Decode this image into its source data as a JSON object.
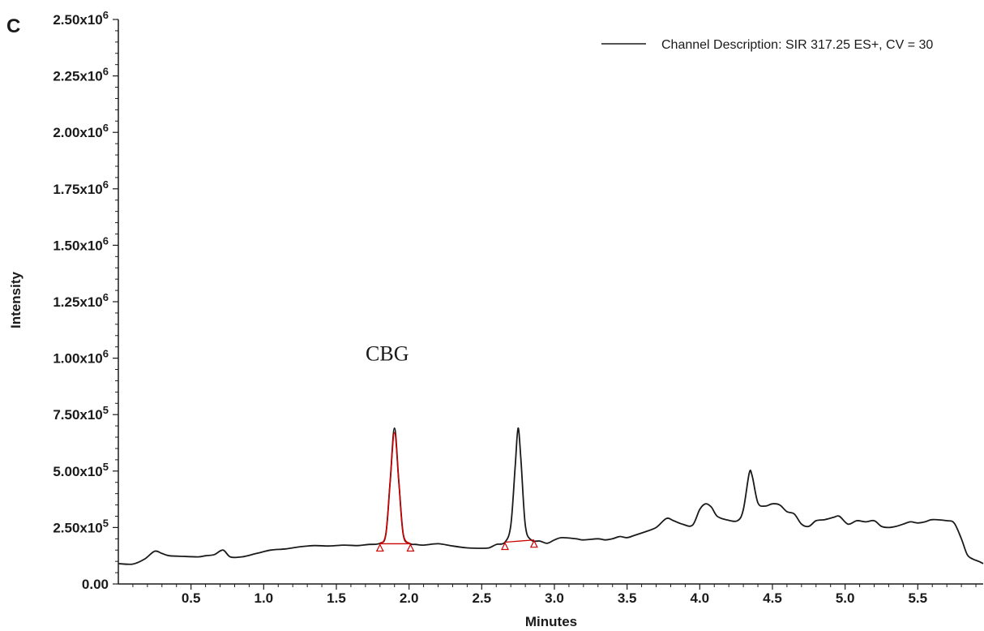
{
  "panel_letter": "C",
  "chart_data": {
    "type": "line",
    "xlabel": "Minutes",
    "ylabel": "Intensity",
    "xlim": [
      0.0,
      5.95
    ],
    "ylim": [
      0,
      2500000
    ],
    "x_ticks": [
      0.5,
      1.0,
      1.5,
      2.0,
      2.5,
      3.0,
      3.5,
      4.0,
      4.5,
      5.0,
      5.5
    ],
    "x_tick_labels": [
      "0.5",
      "1.0",
      "1.5",
      "2.0",
      "2.5",
      "3.0",
      "3.5",
      "4.0",
      "4.5",
      "5.0",
      "5.5"
    ],
    "y_ticks": [
      {
        "value": 0,
        "mantissa": "0.00",
        "exp": ""
      },
      {
        "value": 250000,
        "mantissa": "2.50x10",
        "exp": "5"
      },
      {
        "value": 500000,
        "mantissa": "5.00x10",
        "exp": "5"
      },
      {
        "value": 750000,
        "mantissa": "7.50x10",
        "exp": "5"
      },
      {
        "value": 1000000,
        "mantissa": "1.00x10",
        "exp": "6"
      },
      {
        "value": 1250000,
        "mantissa": "1.25x10",
        "exp": "6"
      },
      {
        "value": 1500000,
        "mantissa": "1.50x10",
        "exp": "6"
      },
      {
        "value": 1750000,
        "mantissa": "1.75x10",
        "exp": "6"
      },
      {
        "value": 2000000,
        "mantissa": "2.00x10",
        "exp": "6"
      },
      {
        "value": 2250000,
        "mantissa": "2.25x10",
        "exp": "6"
      },
      {
        "value": 2500000,
        "mantissa": "2.50x10",
        "exp": "6"
      }
    ],
    "legend": {
      "label": "Channel Description: SIR 317.25 ES+, CV = 30",
      "position": "top-right"
    },
    "grid": false,
    "series": [
      {
        "name": "Channel Description: SIR 317.25 ES+, CV = 30",
        "color": "#1a1a1a",
        "points": [
          [
            0.0,
            90000
          ],
          [
            0.1,
            88000
          ],
          [
            0.18,
            110000
          ],
          [
            0.25,
            145000
          ],
          [
            0.3,
            135000
          ],
          [
            0.35,
            125000
          ],
          [
            0.45,
            122000
          ],
          [
            0.55,
            120000
          ],
          [
            0.6,
            125000
          ],
          [
            0.66,
            130000
          ],
          [
            0.72,
            150000
          ],
          [
            0.77,
            120000
          ],
          [
            0.85,
            120000
          ],
          [
            0.95,
            135000
          ],
          [
            1.05,
            150000
          ],
          [
            1.15,
            155000
          ],
          [
            1.25,
            165000
          ],
          [
            1.35,
            170000
          ],
          [
            1.45,
            168000
          ],
          [
            1.55,
            172000
          ],
          [
            1.65,
            170000
          ],
          [
            1.72,
            175000
          ],
          [
            1.8,
            180000
          ],
          [
            1.84,
            220000
          ],
          [
            1.87,
            450000
          ],
          [
            1.9,
            690000
          ],
          [
            1.93,
            450000
          ],
          [
            1.96,
            220000
          ],
          [
            2.0,
            180000
          ],
          [
            2.05,
            175000
          ],
          [
            2.1,
            172000
          ],
          [
            2.2,
            178000
          ],
          [
            2.3,
            168000
          ],
          [
            2.4,
            160000
          ],
          [
            2.5,
            158000
          ],
          [
            2.55,
            160000
          ],
          [
            2.6,
            175000
          ],
          [
            2.66,
            185000
          ],
          [
            2.7,
            260000
          ],
          [
            2.73,
            520000
          ],
          [
            2.75,
            690000
          ],
          [
            2.77,
            550000
          ],
          [
            2.8,
            260000
          ],
          [
            2.84,
            195000
          ],
          [
            2.9,
            190000
          ],
          [
            2.95,
            180000
          ],
          [
            3.0,
            195000
          ],
          [
            3.05,
            205000
          ],
          [
            3.15,
            200000
          ],
          [
            3.2,
            195000
          ],
          [
            3.3,
            200000
          ],
          [
            3.35,
            195000
          ],
          [
            3.4,
            200000
          ],
          [
            3.45,
            210000
          ],
          [
            3.5,
            205000
          ],
          [
            3.55,
            215000
          ],
          [
            3.62,
            230000
          ],
          [
            3.7,
            250000
          ],
          [
            3.77,
            290000
          ],
          [
            3.82,
            280000
          ],
          [
            3.88,
            265000
          ],
          [
            3.95,
            260000
          ],
          [
            4.0,
            330000
          ],
          [
            4.04,
            355000
          ],
          [
            4.08,
            340000
          ],
          [
            4.12,
            300000
          ],
          [
            4.18,
            285000
          ],
          [
            4.26,
            280000
          ],
          [
            4.3,
            330000
          ],
          [
            4.34,
            490000
          ],
          [
            4.36,
            480000
          ],
          [
            4.4,
            360000
          ],
          [
            4.45,
            345000
          ],
          [
            4.5,
            355000
          ],
          [
            4.55,
            350000
          ],
          [
            4.6,
            320000
          ],
          [
            4.65,
            310000
          ],
          [
            4.7,
            265000
          ],
          [
            4.75,
            255000
          ],
          [
            4.8,
            280000
          ],
          [
            4.86,
            285000
          ],
          [
            4.92,
            295000
          ],
          [
            4.96,
            300000
          ],
          [
            5.02,
            265000
          ],
          [
            5.08,
            280000
          ],
          [
            5.14,
            275000
          ],
          [
            5.2,
            280000
          ],
          [
            5.25,
            255000
          ],
          [
            5.3,
            250000
          ],
          [
            5.35,
            255000
          ],
          [
            5.4,
            265000
          ],
          [
            5.45,
            275000
          ],
          [
            5.5,
            270000
          ],
          [
            5.55,
            275000
          ],
          [
            5.6,
            285000
          ],
          [
            5.7,
            280000
          ],
          [
            5.75,
            270000
          ],
          [
            5.8,
            200000
          ],
          [
            5.84,
            130000
          ],
          [
            5.88,
            110000
          ],
          [
            5.92,
            100000
          ],
          [
            5.95,
            90000
          ]
        ]
      }
    ],
    "integrations": [
      {
        "color": "#cc0000",
        "start": [
          1.8,
          178000
        ],
        "end": [
          2.01,
          178000
        ],
        "peak": [
          [
            1.8,
            178000
          ],
          [
            1.84,
            220000
          ],
          [
            1.87,
            450000
          ],
          [
            1.9,
            670000
          ],
          [
            1.93,
            450000
          ],
          [
            1.96,
            220000
          ],
          [
            2.01,
            178000
          ]
        ]
      },
      {
        "color": "#cc0000",
        "start": [
          2.66,
          185000
        ],
        "end": [
          2.86,
          195000
        ],
        "peak": []
      }
    ],
    "annotations": [
      {
        "text": "CBG",
        "x": 1.85,
        "y": 990000
      }
    ]
  }
}
